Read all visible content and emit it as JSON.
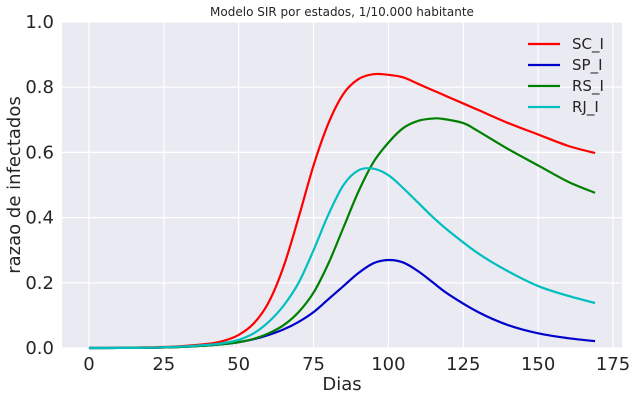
{
  "chart_data": {
    "type": "line",
    "title": "Modelo SIR por estados, 1/10.000 habitante",
    "xlabel": "Dias",
    "ylabel": "razao de infectados",
    "xlim": [
      -9,
      178
    ],
    "ylim": [
      0,
      1.0
    ],
    "xticks": [
      0,
      25,
      50,
      75,
      100,
      125,
      150,
      175
    ],
    "yticks": [
      0.0,
      0.2,
      0.4,
      0.6,
      0.8,
      1.0
    ],
    "xtick_labels": [
      "0",
      "25",
      "50",
      "75",
      "100",
      "125",
      "150",
      "175"
    ],
    "ytick_labels": [
      "0.0",
      "0.2",
      "0.4",
      "0.6",
      "0.8",
      "1.0"
    ],
    "grid": true,
    "legend_position": "top-right",
    "background": "#EAEAF2",
    "series": [
      {
        "name": "SC_I",
        "color": "#FF0000",
        "x": [
          0,
          10,
          20,
          30,
          40,
          45,
          50,
          55,
          60,
          65,
          70,
          75,
          80,
          85,
          90,
          95,
          100,
          105,
          110,
          115,
          120,
          130,
          140,
          150,
          160,
          169
        ],
        "y": [
          0.0,
          0.0005,
          0.002,
          0.005,
          0.013,
          0.022,
          0.04,
          0.075,
          0.14,
          0.25,
          0.4,
          0.56,
          0.69,
          0.78,
          0.825,
          0.84,
          0.838,
          0.83,
          0.81,
          0.79,
          0.77,
          0.73,
          0.69,
          0.655,
          0.62,
          0.598
        ]
      },
      {
        "name": "SP_I",
        "color": "#0000CC",
        "x": [
          0,
          10,
          20,
          30,
          40,
          45,
          50,
          55,
          60,
          65,
          70,
          75,
          80,
          85,
          90,
          95,
          100,
          105,
          110,
          115,
          120,
          130,
          140,
          150,
          160,
          169
        ],
        "y": [
          0.0,
          0.0002,
          0.0008,
          0.003,
          0.008,
          0.012,
          0.018,
          0.027,
          0.04,
          0.057,
          0.08,
          0.11,
          0.15,
          0.19,
          0.23,
          0.26,
          0.27,
          0.262,
          0.235,
          0.2,
          0.165,
          0.11,
          0.07,
          0.045,
          0.03,
          0.021
        ]
      },
      {
        "name": "RS_I",
        "color": "#008000",
        "x": [
          0,
          10,
          20,
          30,
          40,
          45,
          50,
          55,
          60,
          65,
          70,
          75,
          80,
          85,
          90,
          95,
          100,
          105,
          110,
          115,
          118,
          125,
          130,
          140,
          150,
          160,
          169
        ],
        "y": [
          0.0,
          0.0002,
          0.0008,
          0.003,
          0.008,
          0.012,
          0.018,
          0.028,
          0.045,
          0.07,
          0.11,
          0.17,
          0.26,
          0.37,
          0.48,
          0.57,
          0.63,
          0.675,
          0.697,
          0.704,
          0.703,
          0.69,
          0.665,
          0.61,
          0.56,
          0.51,
          0.476
        ]
      },
      {
        "name": "RJ_I",
        "color": "#00BFBF",
        "x": [
          0,
          10,
          20,
          30,
          40,
          45,
          50,
          55,
          60,
          65,
          70,
          75,
          80,
          85,
          90,
          95,
          100,
          105,
          110,
          115,
          120,
          130,
          140,
          150,
          160,
          169
        ],
        "y": [
          0.0,
          0.0002,
          0.001,
          0.004,
          0.01,
          0.015,
          0.025,
          0.045,
          0.08,
          0.13,
          0.2,
          0.3,
          0.41,
          0.5,
          0.545,
          0.55,
          0.53,
          0.49,
          0.445,
          0.4,
          0.36,
          0.29,
          0.235,
          0.19,
          0.16,
          0.138
        ]
      }
    ]
  }
}
